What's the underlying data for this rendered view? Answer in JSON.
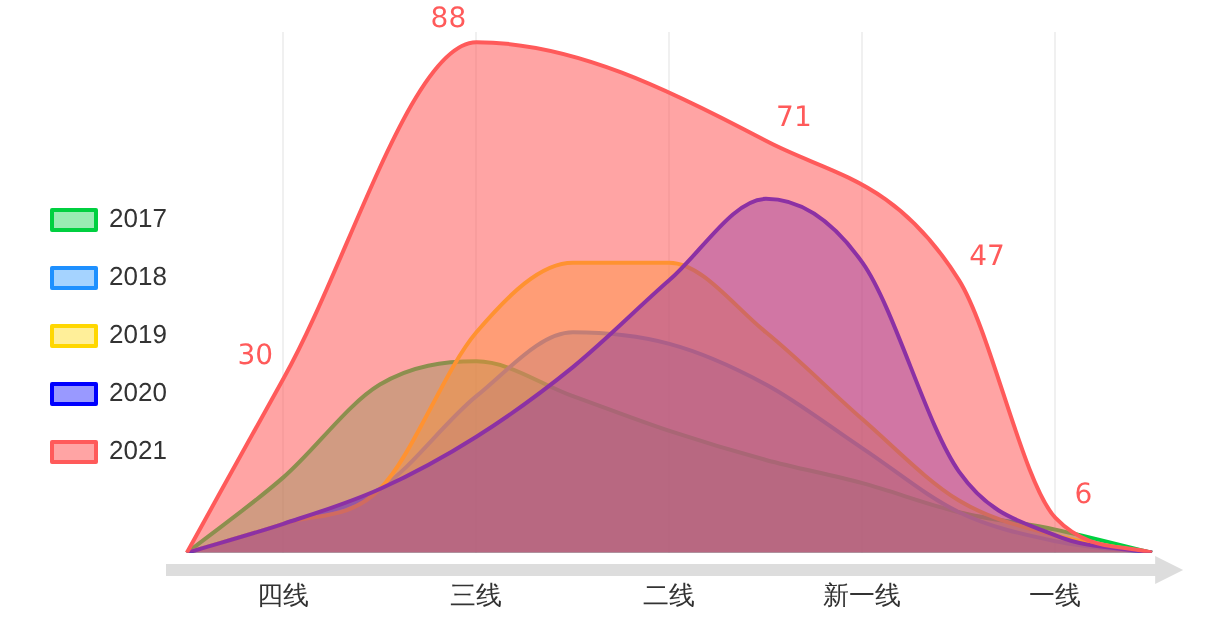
{
  "chart_data": {
    "type": "area",
    "legend": "left",
    "grid": "x",
    "categories": [
      null,
      "四线",
      null,
      "三线",
      null,
      "二线",
      null,
      "新一线",
      null,
      "一线",
      null
    ],
    "series": [
      {
        "name": "2017",
        "color": "#00d040",
        "values": [
          0,
          13,
          29,
          33,
          27,
          21,
          16,
          12,
          7,
          4,
          0
        ]
      },
      {
        "name": "2018",
        "color": "#1e90ff",
        "values": [
          0,
          5,
          11,
          27,
          38,
          36,
          29,
          18,
          7,
          2,
          0
        ]
      },
      {
        "name": "2019",
        "color": "#ffd700",
        "values": [
          0,
          5,
          11,
          38,
          50,
          50,
          38,
          23,
          9,
          3,
          0
        ]
      },
      {
        "name": "2020",
        "color": "#0000ff",
        "values": [
          0,
          5,
          11,
          20,
          32,
          47,
          61,
          50,
          14,
          3,
          0
        ]
      },
      {
        "name": "2021",
        "color": "#ff5a5a",
        "values": [
          0,
          30,
          null,
          88,
          null,
          null,
          71,
          null,
          47,
          6,
          0
        ],
        "value_labels": [
          null,
          "30",
          null,
          "88",
          null,
          null,
          "71",
          null,
          "47",
          "6",
          null
        ]
      }
    ]
  }
}
